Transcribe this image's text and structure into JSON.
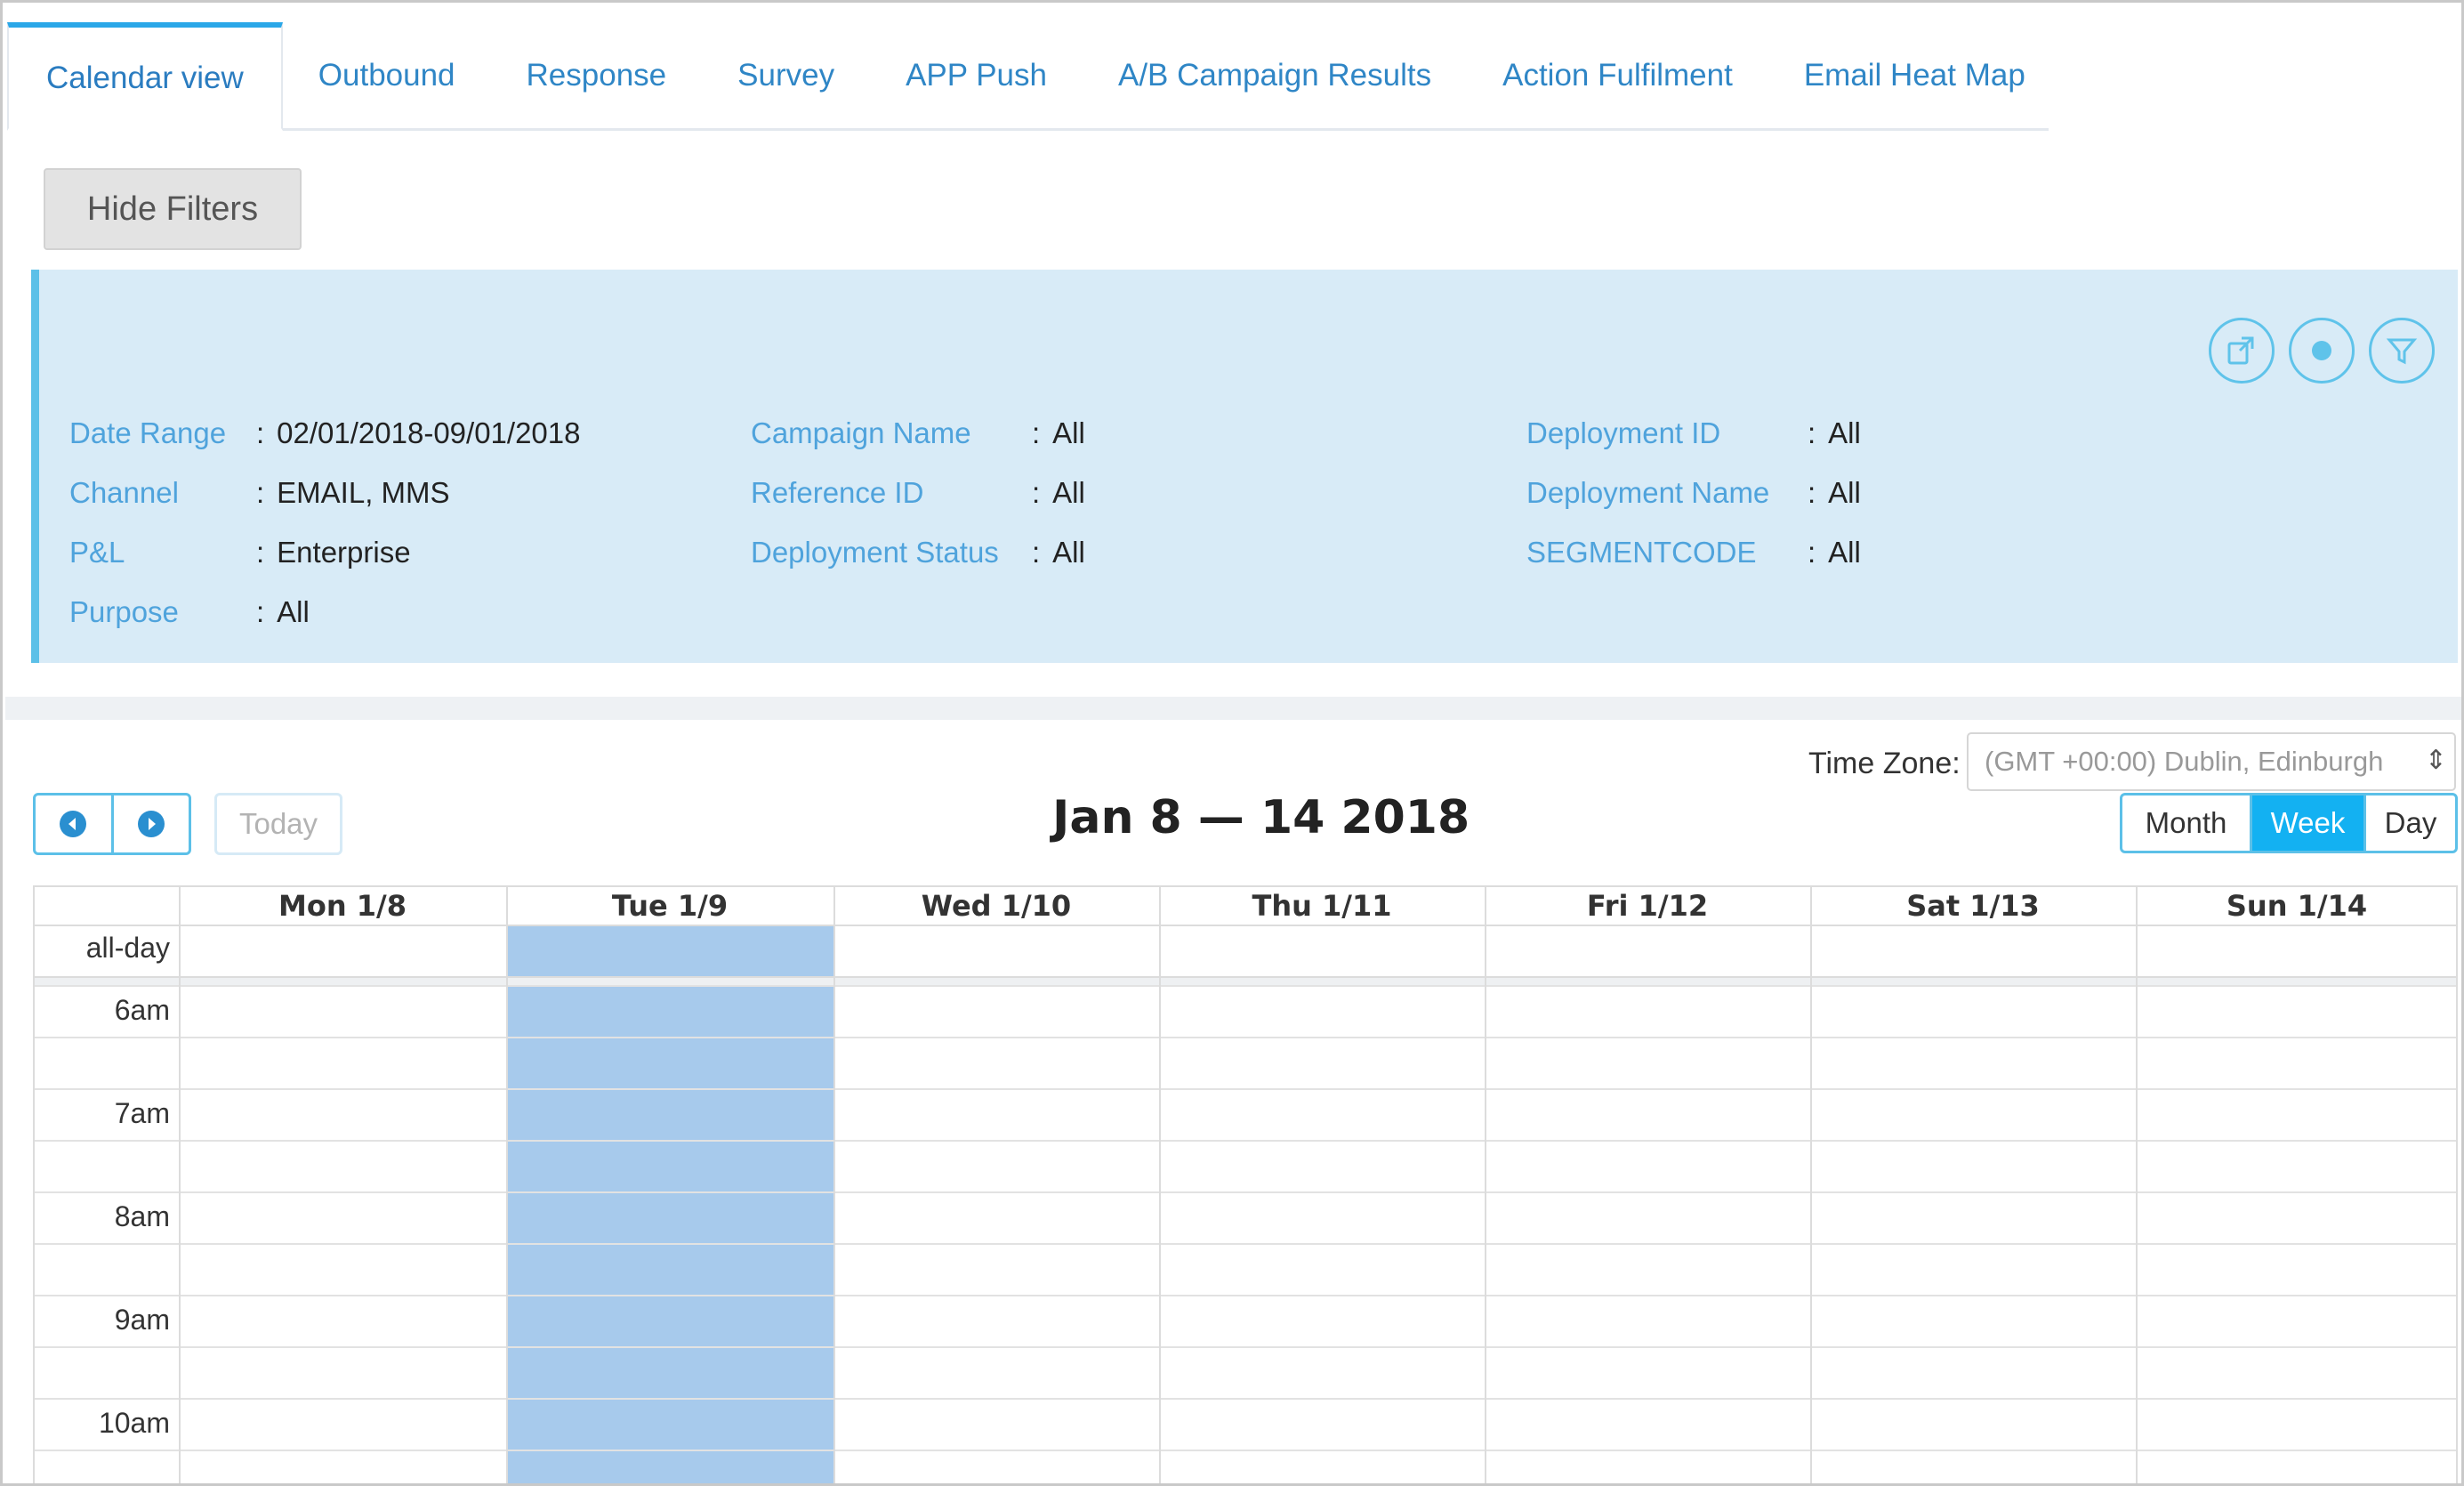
{
  "tabs": [
    {
      "label": "Calendar view",
      "active": true
    },
    {
      "label": "Outbound"
    },
    {
      "label": "Response"
    },
    {
      "label": "Survey"
    },
    {
      "label": "APP Push"
    },
    {
      "label": "A/B Campaign Results"
    },
    {
      "label": "Action Fulfilment"
    },
    {
      "label": "Email Heat Map"
    }
  ],
  "filters_toggle": "Hide Filters",
  "filters": {
    "col1": [
      {
        "key": "Date Range",
        "value": "02/01/2018-09/01/2018"
      },
      {
        "key": "Channel",
        "value": "EMAIL, MMS"
      },
      {
        "key": "P&L",
        "value": "Enterprise"
      },
      {
        "key": "Purpose",
        "value": "All"
      }
    ],
    "col2": [
      {
        "key": "Campaign Name",
        "value": "All"
      },
      {
        "key": "Reference ID",
        "value": "All"
      },
      {
        "key": "Deployment Status",
        "value": "All"
      }
    ],
    "col3": [
      {
        "key": "Deployment ID",
        "value": "All"
      },
      {
        "key": "Deployment Name",
        "value": "All"
      },
      {
        "key": "SEGMENTCODE",
        "value": "All"
      }
    ],
    "separator": ":",
    "icons": [
      "export-icon",
      "record-icon",
      "filter-icon"
    ]
  },
  "calendar": {
    "timezone_label": "Time Zone:",
    "timezone_value": "(GMT +00:00) Dublin, Edinburgh",
    "today_label": "Today",
    "title": "Jan 8 — 14 2018",
    "views": {
      "month": "Month",
      "week": "Week",
      "day": "Day",
      "selected": "Week"
    },
    "days": [
      "Mon 1/8",
      "Tue 1/9",
      "Wed 1/10",
      "Thu 1/11",
      "Fri 1/12",
      "Sat 1/13",
      "Sun 1/14"
    ],
    "highlighted_day": "Tue 1/9",
    "allday_label": "all-day",
    "times": [
      "6am",
      "7am",
      "8am",
      "9am",
      "10am"
    ]
  },
  "colors": {
    "accent": "#2aa7e8",
    "tab_text": "#2f86c6",
    "filter_panel": "#d8ebf7",
    "today_highlight": "#a7caec",
    "week_active": "#13b1f2"
  }
}
